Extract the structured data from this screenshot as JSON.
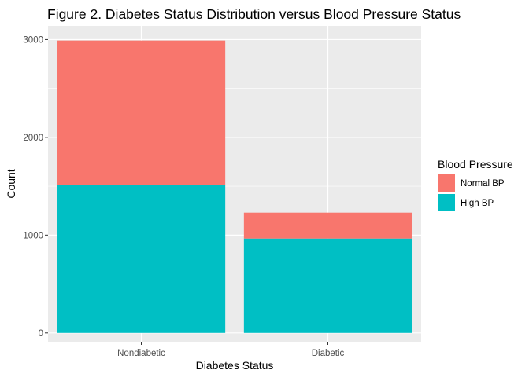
{
  "chart_data": {
    "type": "bar",
    "stacked": true,
    "title": "Figure 2. Diabetes Status Distribution versus Blood Pressure Status",
    "xlabel": "Diabetes Status",
    "ylabel": "Count",
    "categories": [
      "Nondiabetic",
      "Diabetic"
    ],
    "series": [
      {
        "name": "High BP",
        "values": [
          1515,
          965
        ],
        "color": "#00BFC4"
      },
      {
        "name": "Normal BP",
        "values": [
          1475,
          265
        ],
        "color": "#F8766D"
      }
    ],
    "y_ticks": [
      0,
      1000,
      2000,
      3000
    ],
    "ylim": [
      -90,
      3140
    ],
    "grid": true,
    "panel_background": "#EBEBEB",
    "grid_color": "#FFFFFF",
    "legend": {
      "title": "Blood Pressure",
      "position": "right",
      "entries": [
        {
          "label": "Normal BP",
          "color": "#F8766D"
        },
        {
          "label": "High BP",
          "color": "#00BFC4"
        }
      ]
    }
  }
}
